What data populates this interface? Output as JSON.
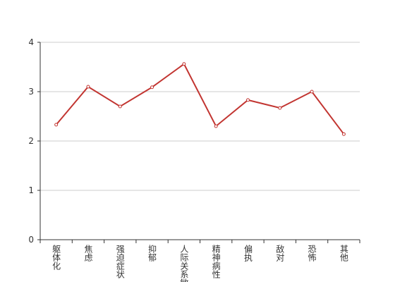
{
  "chart_data": {
    "type": "line",
    "categories": [
      "躯体化",
      "焦虑",
      "强迫症状",
      "抑郁",
      "人际关系敏感",
      "精神病性",
      "偏执",
      "敌对",
      "恐怖",
      "其他"
    ],
    "series": [
      {
        "color": "#c23531",
        "values": [
          2.33,
          3.1,
          2.7,
          3.09,
          3.56,
          2.3,
          2.83,
          2.67,
          3.0,
          2.14
        ]
      }
    ],
    "ylim": [
      0,
      4
    ],
    "yticks": [
      0,
      1,
      2,
      3,
      4
    ],
    "grid": true
  }
}
